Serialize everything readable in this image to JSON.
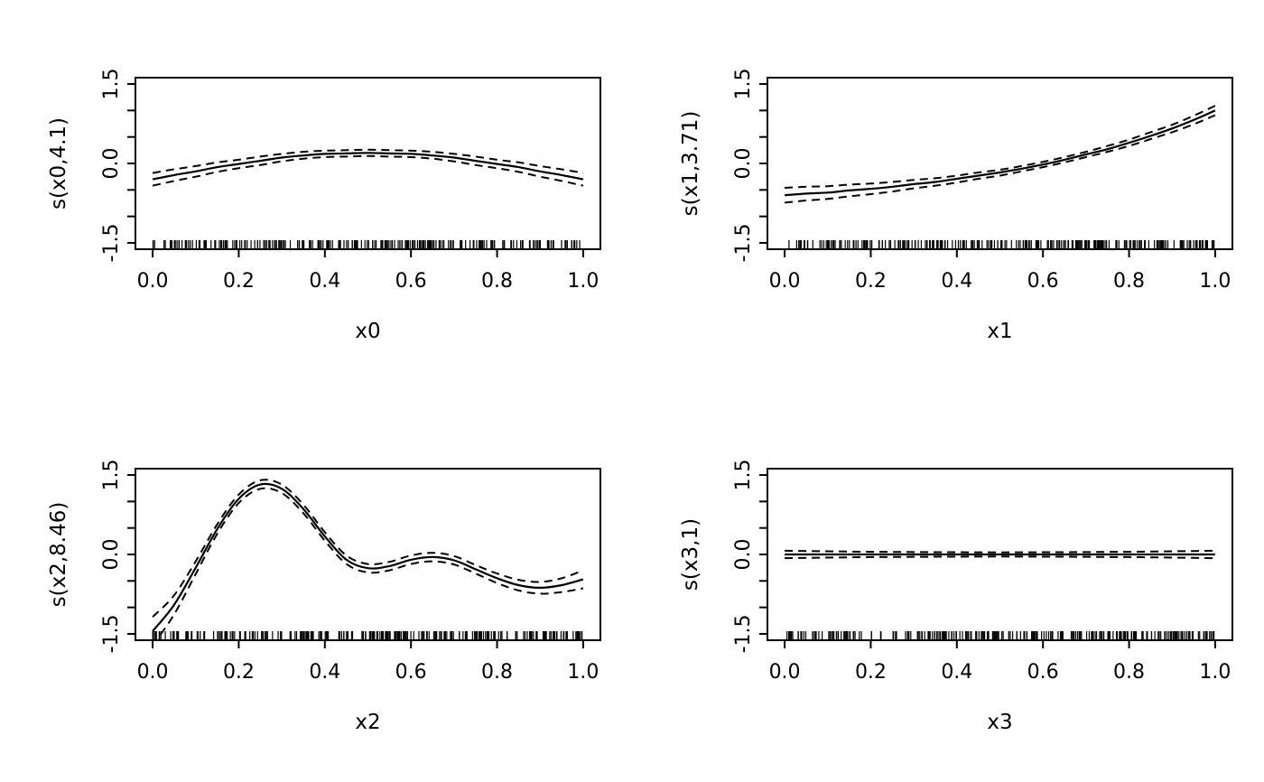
{
  "page": {
    "background": "#ffffff",
    "foreground": "#000000"
  },
  "chart_data": [
    {
      "type": "line",
      "title": "",
      "xlabel": "x0",
      "ylabel": "s(x0,4.1)",
      "xlim": [
        0,
        1
      ],
      "ylim": [
        -1.5,
        1.5
      ],
      "x_ticks": [
        0,
        0.2,
        0.4,
        0.6,
        0.8,
        1
      ],
      "x_tick_labels": [
        "0.0",
        "0.2",
        "0.4",
        "0.6",
        "0.8",
        "1.0"
      ],
      "y_ticks": [
        -1.5,
        -1,
        -0.5,
        0,
        0.5,
        1,
        1.5
      ],
      "y_labeled_ticks": [
        [
          -1.5,
          "-1.5"
        ],
        [
          0,
          "0.0"
        ],
        [
          1.5,
          "1.5"
        ]
      ],
      "line_color": "#000000",
      "series": [
        {
          "name": "fit",
          "style": "solid"
        },
        {
          "name": "ci-upper",
          "style": "dashed"
        },
        {
          "name": "ci-lower",
          "style": "dashed"
        }
      ],
      "x": [
        0,
        0.05,
        0.1,
        0.15,
        0.2,
        0.25,
        0.3,
        0.35,
        0.4,
        0.45,
        0.5,
        0.55,
        0.6,
        0.65,
        0.7,
        0.75,
        0.8,
        0.85,
        0.9,
        0.95,
        1
      ],
      "fit": [
        -0.3,
        -0.22,
        -0.15,
        -0.07,
        -0.01,
        0.05,
        0.11,
        0.15,
        0.18,
        0.19,
        0.2,
        0.19,
        0.18,
        0.15,
        0.11,
        0.05,
        -0.01,
        -0.07,
        -0.15,
        -0.22,
        -0.3
      ],
      "lo": [
        -0.42,
        -0.33,
        -0.25,
        -0.16,
        -0.09,
        -0.03,
        0.04,
        0.09,
        0.12,
        0.13,
        0.14,
        0.13,
        0.12,
        0.09,
        0.04,
        -0.03,
        -0.09,
        -0.16,
        -0.25,
        -0.33,
        -0.42
      ],
      "hi": [
        -0.18,
        -0.11,
        -0.05,
        0.02,
        0.07,
        0.13,
        0.18,
        0.22,
        0.24,
        0.25,
        0.26,
        0.25,
        0.24,
        0.22,
        0.18,
        0.13,
        0.07,
        0.02,
        -0.05,
        -0.11,
        -0.18
      ],
      "rug": {
        "count": 260,
        "seed": 101
      }
    },
    {
      "type": "line",
      "title": "",
      "xlabel": "x1",
      "ylabel": "s(x1,3.71)",
      "xlim": [
        0,
        1
      ],
      "ylim": [
        -1.5,
        1.5
      ],
      "x_ticks": [
        0,
        0.2,
        0.4,
        0.6,
        0.8,
        1
      ],
      "x_tick_labels": [
        "0.0",
        "0.2",
        "0.4",
        "0.6",
        "0.8",
        "1.0"
      ],
      "y_ticks": [
        -1.5,
        -1,
        -0.5,
        0,
        0.5,
        1,
        1.5
      ],
      "y_labeled_ticks": [
        [
          -1.5,
          "-1.5"
        ],
        [
          0,
          "0.0"
        ],
        [
          1.5,
          "1.5"
        ]
      ],
      "line_color": "#000000",
      "series": [
        {
          "name": "fit",
          "style": "solid"
        },
        {
          "name": "ci-upper",
          "style": "dashed"
        },
        {
          "name": "ci-lower",
          "style": "dashed"
        }
      ],
      "x": [
        0,
        0.05,
        0.1,
        0.15,
        0.2,
        0.25,
        0.3,
        0.35,
        0.4,
        0.45,
        0.5,
        0.55,
        0.6,
        0.65,
        0.7,
        0.75,
        0.8,
        0.85,
        0.9,
        0.95,
        1
      ],
      "fit": [
        -0.6,
        -0.57,
        -0.55,
        -0.51,
        -0.48,
        -0.44,
        -0.39,
        -0.35,
        -0.29,
        -0.23,
        -0.17,
        -0.1,
        -0.02,
        0.07,
        0.17,
        0.27,
        0.39,
        0.52,
        0.66,
        0.82,
        1.0
      ],
      "lo": [
        -0.74,
        -0.7,
        -0.67,
        -0.62,
        -0.58,
        -0.53,
        -0.47,
        -0.42,
        -0.36,
        -0.29,
        -0.23,
        -0.15,
        -0.07,
        0.02,
        0.12,
        0.22,
        0.33,
        0.46,
        0.59,
        0.74,
        0.91
      ],
      "hi": [
        -0.46,
        -0.44,
        -0.43,
        -0.4,
        -0.38,
        -0.35,
        -0.31,
        -0.28,
        -0.23,
        -0.17,
        -0.12,
        -0.05,
        0.03,
        0.12,
        0.22,
        0.33,
        0.45,
        0.59,
        0.73,
        0.9,
        1.09
      ],
      "rug": {
        "count": 260,
        "seed": 202
      }
    },
    {
      "type": "line",
      "title": "",
      "xlabel": "x2",
      "ylabel": "s(x2,8.46)",
      "xlim": [
        0,
        1
      ],
      "ylim": [
        -1.5,
        1.5
      ],
      "x_ticks": [
        0,
        0.2,
        0.4,
        0.6,
        0.8,
        1
      ],
      "x_tick_labels": [
        "0.0",
        "0.2",
        "0.4",
        "0.6",
        "0.8",
        "1.0"
      ],
      "y_ticks": [
        -1.5,
        -1,
        -0.5,
        0,
        0.5,
        1,
        1.5
      ],
      "y_labeled_ticks": [
        [
          -1.5,
          "-1.5"
        ],
        [
          0,
          "0.0"
        ],
        [
          1.5,
          "1.5"
        ]
      ],
      "line_color": "#000000",
      "series": [
        {
          "name": "fit",
          "style": "solid"
        },
        {
          "name": "ci-upper",
          "style": "dashed"
        },
        {
          "name": "ci-lower",
          "style": "dashed"
        }
      ],
      "x": [
        0,
        0.05,
        0.1,
        0.15,
        0.2,
        0.25,
        0.3,
        0.35,
        0.4,
        0.45,
        0.5,
        0.55,
        0.6,
        0.65,
        0.7,
        0.75,
        0.8,
        0.85,
        0.9,
        0.95,
        1
      ],
      "fit": [
        -1.45,
        -0.95,
        -0.25,
        0.48,
        1.05,
        1.32,
        1.24,
        0.86,
        0.34,
        -0.1,
        -0.26,
        -0.22,
        -0.1,
        -0.05,
        -0.11,
        -0.28,
        -0.45,
        -0.58,
        -0.63,
        -0.58,
        -0.47
      ],
      "lo": [
        -1.72,
        -1.13,
        -0.37,
        0.39,
        0.97,
        1.24,
        1.16,
        0.78,
        0.26,
        -0.18,
        -0.34,
        -0.3,
        -0.18,
        -0.13,
        -0.19,
        -0.36,
        -0.54,
        -0.68,
        -0.74,
        -0.71,
        -0.64
      ],
      "hi": [
        -1.18,
        -0.77,
        -0.13,
        0.57,
        1.13,
        1.4,
        1.32,
        0.94,
        0.42,
        -0.02,
        -0.18,
        -0.14,
        -0.02,
        0.03,
        -0.03,
        -0.2,
        -0.36,
        -0.48,
        -0.52,
        -0.45,
        -0.3
      ],
      "rug": {
        "count": 260,
        "seed": 303
      }
    },
    {
      "type": "line",
      "title": "",
      "xlabel": "x3",
      "ylabel": "s(x3,1)",
      "xlim": [
        0,
        1
      ],
      "ylim": [
        -1.5,
        1.5
      ],
      "x_ticks": [
        0,
        0.2,
        0.4,
        0.6,
        0.8,
        1
      ],
      "x_tick_labels": [
        "0.0",
        "0.2",
        "0.4",
        "0.6",
        "0.8",
        "1.0"
      ],
      "y_ticks": [
        -1.5,
        -1,
        -0.5,
        0,
        0.5,
        1,
        1.5
      ],
      "y_labeled_ticks": [
        [
          -1.5,
          "-1.5"
        ],
        [
          0,
          "0.0"
        ],
        [
          1.5,
          "1.5"
        ]
      ],
      "line_color": "#000000",
      "series": [
        {
          "name": "fit",
          "style": "solid"
        },
        {
          "name": "ci-upper",
          "style": "dashed"
        },
        {
          "name": "ci-lower",
          "style": "dashed"
        }
      ],
      "x": [
        0,
        0.05,
        0.1,
        0.15,
        0.2,
        0.25,
        0.3,
        0.35,
        0.4,
        0.45,
        0.5,
        0.55,
        0.6,
        0.65,
        0.7,
        0.75,
        0.8,
        0.85,
        0.9,
        0.95,
        1
      ],
      "fit": [
        0,
        0,
        0,
        0,
        0,
        0,
        0,
        0,
        0,
        0,
        0,
        0,
        0,
        0,
        0,
        0,
        0,
        0,
        0,
        0,
        0
      ],
      "lo": [
        -0.07,
        -0.065,
        -0.06,
        -0.055,
        -0.05,
        -0.048,
        -0.045,
        -0.043,
        -0.042,
        -0.041,
        -0.04,
        -0.041,
        -0.042,
        -0.043,
        -0.045,
        -0.048,
        -0.05,
        -0.055,
        -0.06,
        -0.065,
        -0.07
      ],
      "hi": [
        0.07,
        0.065,
        0.06,
        0.055,
        0.05,
        0.048,
        0.045,
        0.043,
        0.042,
        0.041,
        0.04,
        0.041,
        0.042,
        0.043,
        0.045,
        0.048,
        0.05,
        0.055,
        0.06,
        0.065,
        0.07
      ],
      "rug": {
        "count": 260,
        "seed": 404
      }
    }
  ]
}
